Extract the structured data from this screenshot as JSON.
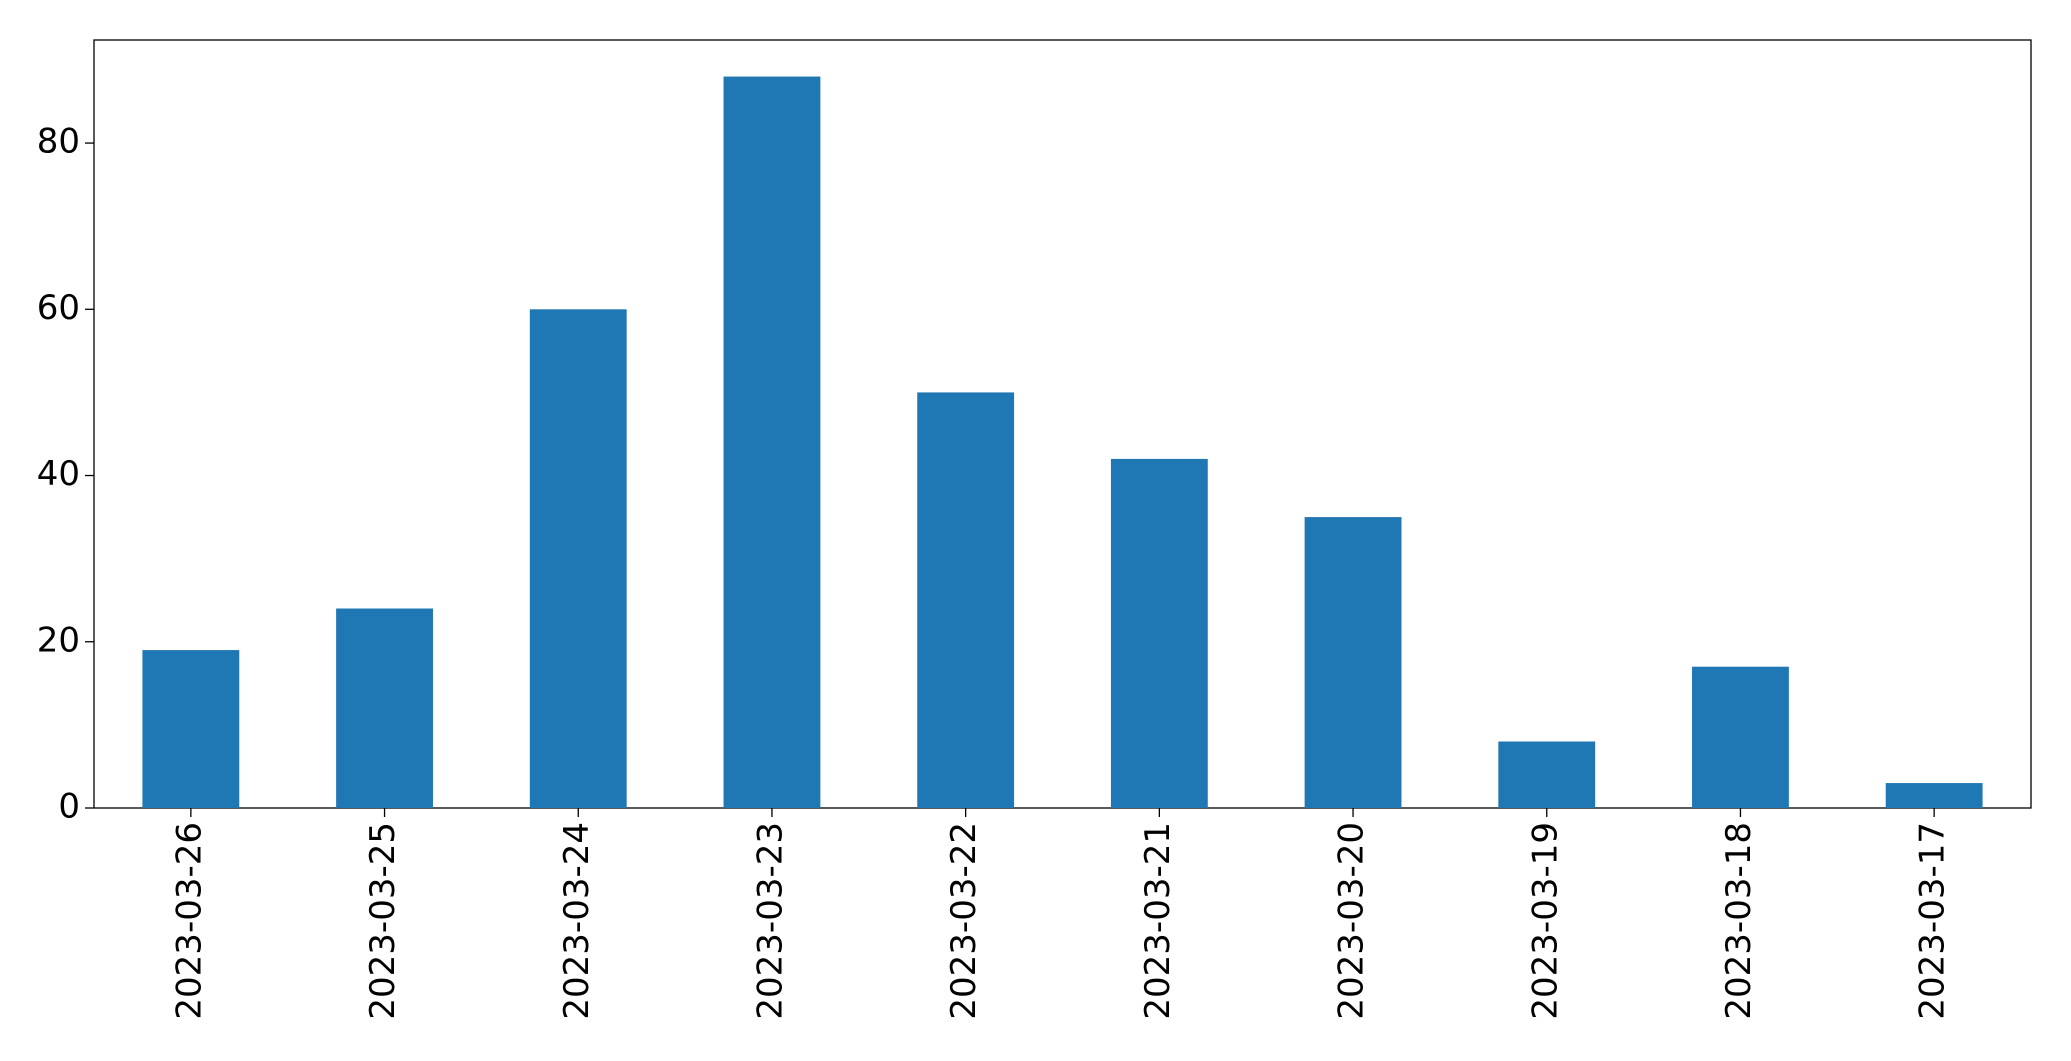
{
  "chart_data": {
    "type": "bar",
    "categories": [
      "2023-03-26",
      "2023-03-25",
      "2023-03-24",
      "2023-03-23",
      "2023-03-22",
      "2023-03-21",
      "2023-03-20",
      "2023-03-19",
      "2023-03-18",
      "2023-03-17"
    ],
    "values": [
      19,
      24,
      60,
      88,
      50,
      42,
      35,
      8,
      17,
      3
    ],
    "color": "#1f77b4",
    "ylim": [
      0,
      92.4
    ],
    "yticks": [
      0,
      20,
      40,
      60,
      80
    ],
    "grid": false
  }
}
